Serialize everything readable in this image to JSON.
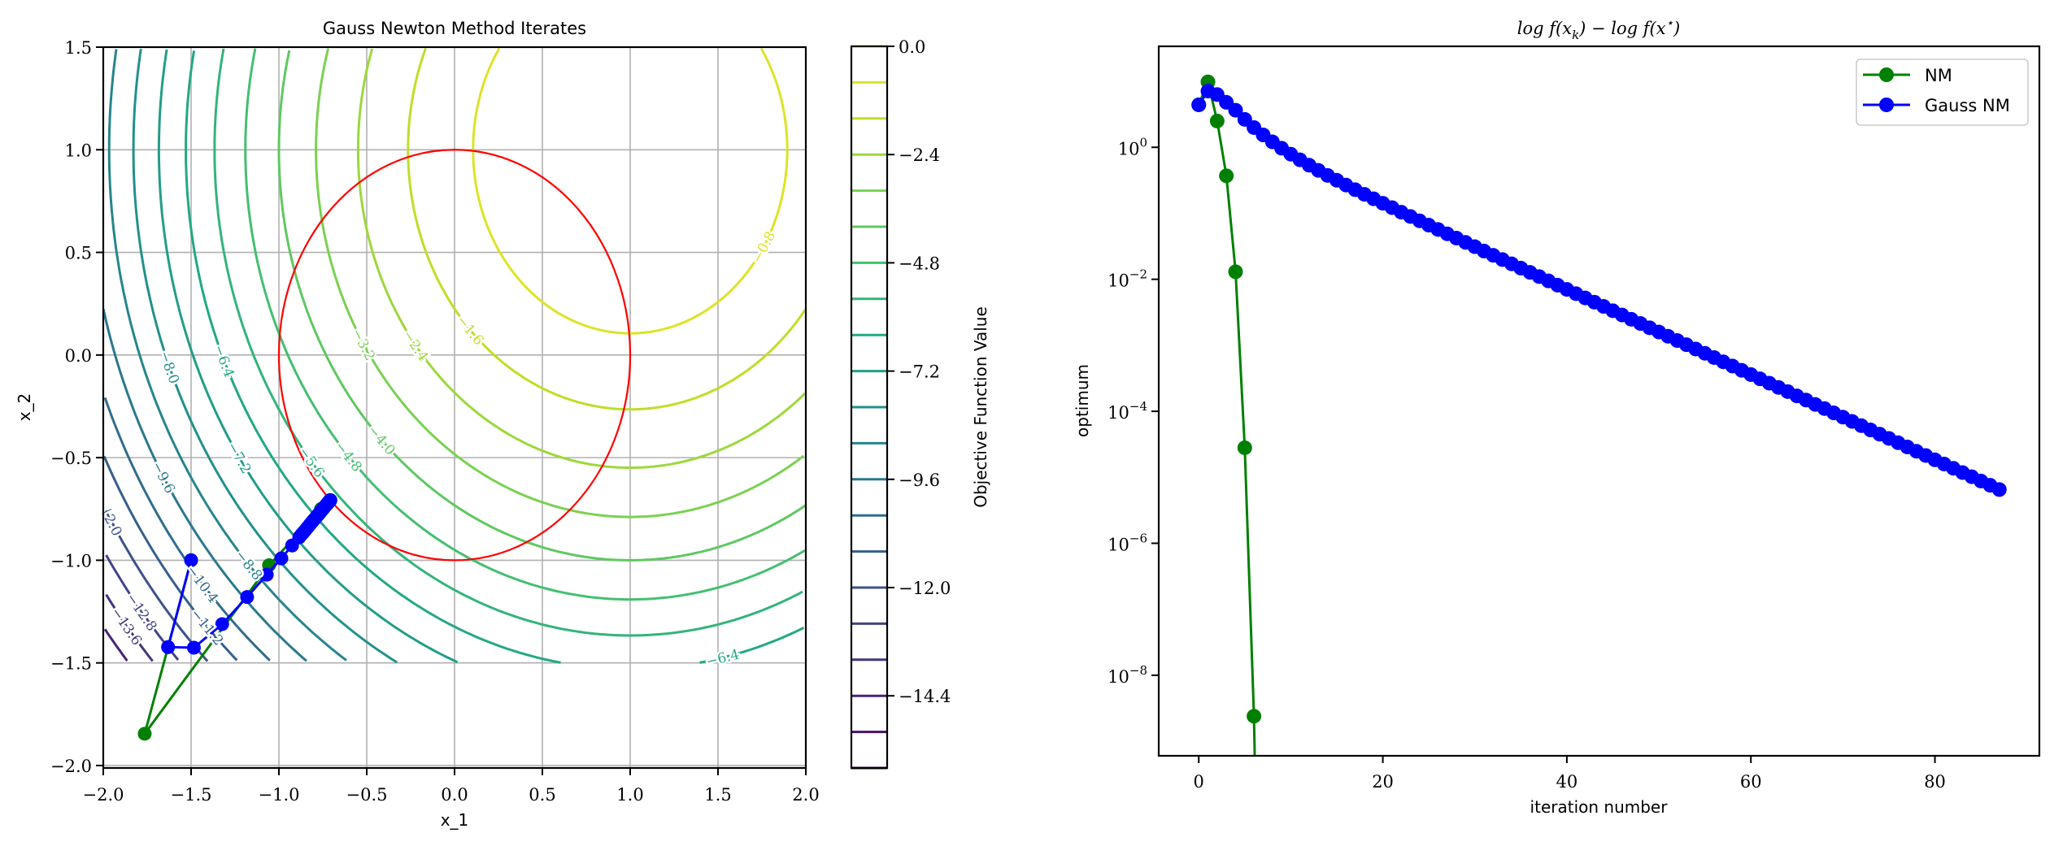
{
  "chart_data": [
    {
      "type": "contour",
      "title": "Gauss Newton Method Iterates",
      "xlabel": "x_1",
      "ylabel": "x_2",
      "xlim": [
        -2.0,
        2.0
      ],
      "ylim": [
        -2.012,
        1.5
      ],
      "grid": true,
      "xticks": [
        {
          "value": -2.0,
          "label": "−2.0"
        },
        {
          "value": -1.5,
          "label": "−1.5"
        },
        {
          "value": -1.0,
          "label": "−1.0"
        },
        {
          "value": -0.5,
          "label": "−0.5"
        },
        {
          "value": 0.0,
          "label": "0.0"
        },
        {
          "value": 0.5,
          "label": "0.5"
        },
        {
          "value": 1.0,
          "label": "1.0"
        },
        {
          "value": 1.5,
          "label": "1.5"
        },
        {
          "value": 2.0,
          "label": "2.0"
        }
      ],
      "yticks": [
        {
          "value": -2.0,
          "label": "−2.0"
        },
        {
          "value": -1.5,
          "label": "−1.5"
        },
        {
          "value": -1.0,
          "label": "−1.0"
        },
        {
          "value": -0.5,
          "label": "−0.5"
        },
        {
          "value": 0.0,
          "label": "0.0"
        },
        {
          "value": 0.5,
          "label": "0.5"
        },
        {
          "value": 1.0,
          "label": "1.0"
        },
        {
          "value": 1.5,
          "label": "1.5"
        }
      ],
      "contour_domain": {
        "x": [
          -2.0,
          2.0
        ],
        "y": [
          -1.5,
          1.5
        ]
      },
      "contour_center": [
        1.0,
        1.0
      ],
      "contour_levels": [
        -0.8,
        -1.6,
        -2.4,
        -3.2,
        -4.0,
        -4.8,
        -5.6,
        -6.4,
        -7.2,
        -8.0,
        -8.8,
        -9.6,
        -10.4,
        -11.2,
        -12.0,
        -12.8,
        -13.6,
        -14.4,
        -15.2
      ],
      "contour_labels": [
        {
          "level": -0.8,
          "text": "−0.8"
        },
        {
          "level": -1.6,
          "text": "−1.6"
        },
        {
          "level": -2.4,
          "text": "−2.4"
        },
        {
          "level": -3.2,
          "text": "−3.2"
        },
        {
          "level": -4.0,
          "text": "−4.0"
        },
        {
          "level": -4.8,
          "text": "−4.8"
        },
        {
          "level": -5.6,
          "text": "−5.6"
        },
        {
          "level": -6.4,
          "text": "−6.4"
        },
        {
          "level": -6.4,
          "text": "−6.4"
        },
        {
          "level": -7.2,
          "text": "−7.2"
        },
        {
          "level": -8.0,
          "text": "−8.0"
        },
        {
          "level": -8.8,
          "text": "−8.8"
        },
        {
          "level": -9.6,
          "text": "−9.6"
        },
        {
          "level": -10.4,
          "text": "−10.4"
        },
        {
          "level": -11.2,
          "text": "−11.2"
        },
        {
          "level": -12.0,
          "text": "−12.0"
        },
        {
          "level": -12.8,
          "text": "−12.8"
        },
        {
          "level": -13.6,
          "text": "−13.6"
        }
      ],
      "constraint_circle": {
        "center": [
          0.0,
          0.0
        ],
        "radius": 1.0,
        "color": "#ff0000"
      },
      "colorbar": {
        "label": "Objective Function Value",
        "range": [
          -16.0,
          0.0
        ],
        "line_levels": [
          -16.0,
          -15.2,
          -14.4,
          -13.6,
          -12.8,
          -12.0,
          -11.2,
          -10.4,
          -9.6,
          -8.8,
          -8.0,
          -7.2,
          -6.4,
          -5.6,
          -4.8,
          -4.0,
          -3.2,
          -2.4,
          -1.6,
          -0.8,
          0.0
        ],
        "ticks": [
          {
            "value": 0.0,
            "label": "0.0"
          },
          {
            "value": -2.4,
            "label": "−2.4"
          },
          {
            "value": -4.8,
            "label": "−4.8"
          },
          {
            "value": -7.2,
            "label": "−7.2"
          },
          {
            "value": -9.6,
            "label": "−9.6"
          },
          {
            "value": -12.0,
            "label": "−12.0"
          },
          {
            "value": -14.4,
            "label": "−14.4"
          }
        ]
      },
      "series": [
        {
          "name": "NM",
          "color": "#008000",
          "points": [
            [
              -1.5,
              -1.0
            ],
            [
              -1.631,
              -1.423
            ],
            [
              -1.764,
              -1.845
            ],
            [
              -1.056,
              -1.024
            ],
            [
              -0.76,
              -0.75
            ],
            [
              -0.709,
              -0.708
            ],
            [
              -0.707,
              -0.707
            ],
            [
              -0.707,
              -0.707
            ]
          ]
        },
        {
          "name": "Gauss NM",
          "color": "#0000ff",
          "points": [
            [
              -1.5,
              -1.0
            ],
            [
              -1.631,
              -1.423
            ],
            [
              -1.484,
              -1.426
            ],
            [
              -1.323,
              -1.311
            ],
            [
              -1.181,
              -1.179
            ],
            [
              -1.069,
              -1.07
            ],
            [
              -0.986,
              -0.991
            ],
            [
              -0.925,
              -0.928
            ],
            [
              -0.884,
              -0.888
            ],
            [
              -0.872,
              -0.875
            ],
            [
              -0.86,
              -0.864
            ],
            [
              -0.849,
              -0.853
            ],
            [
              -0.839,
              -0.842
            ],
            [
              -0.83,
              -0.833
            ],
            [
              -0.822,
              -0.824
            ],
            [
              -0.814,
              -0.816
            ],
            [
              -0.806,
              -0.808
            ],
            [
              -0.799,
              -0.801
            ],
            [
              -0.793,
              -0.795
            ],
            [
              -0.787,
              -0.788
            ],
            [
              -0.781,
              -0.783
            ],
            [
              -0.776,
              -0.777
            ],
            [
              -0.771,
              -0.773
            ],
            [
              -0.767,
              -0.768
            ],
            [
              -0.762,
              -0.764
            ],
            [
              -0.759,
              -0.76
            ],
            [
              -0.755,
              -0.756
            ],
            [
              -0.752,
              -0.753
            ],
            [
              -0.748,
              -0.749
            ],
            [
              -0.746,
              -0.746
            ],
            [
              -0.743,
              -0.743
            ],
            [
              -0.74,
              -0.74
            ],
            [
              -0.738,
              -0.738
            ],
            [
              -0.736,
              -0.736
            ],
            [
              -0.734,
              -0.734
            ],
            [
              -0.732,
              -0.732
            ],
            [
              -0.73,
              -0.73
            ],
            [
              -0.729,
              -0.729
            ],
            [
              -0.727,
              -0.727
            ],
            [
              -0.726,
              -0.726
            ],
            [
              -0.724,
              -0.724
            ],
            [
              -0.723,
              -0.723
            ],
            [
              -0.722,
              -0.722
            ],
            [
              -0.721,
              -0.721
            ],
            [
              -0.72,
              -0.72
            ],
            [
              -0.719,
              -0.719
            ],
            [
              -0.718,
              -0.718
            ],
            [
              -0.717,
              -0.717
            ],
            [
              -0.717,
              -0.717
            ],
            [
              -0.716,
              -0.716
            ],
            [
              -0.715,
              -0.715
            ],
            [
              -0.715,
              -0.715
            ],
            [
              -0.714,
              -0.714
            ],
            [
              -0.714,
              -0.714
            ],
            [
              -0.713,
              -0.713
            ],
            [
              -0.713,
              -0.713
            ],
            [
              -0.712,
              -0.712
            ],
            [
              -0.712,
              -0.712
            ],
            [
              -0.712,
              -0.712
            ],
            [
              -0.711,
              -0.711
            ],
            [
              -0.711,
              -0.711
            ],
            [
              -0.711,
              -0.711
            ],
            [
              -0.711,
              -0.711
            ],
            [
              -0.71,
              -0.71
            ],
            [
              -0.71,
              -0.71
            ],
            [
              -0.71,
              -0.71
            ],
            [
              -0.71,
              -0.71
            ],
            [
              -0.709,
              -0.709
            ],
            [
              -0.709,
              -0.709
            ],
            [
              -0.709,
              -0.709
            ],
            [
              -0.709,
              -0.709
            ],
            [
              -0.709,
              -0.709
            ],
            [
              -0.708,
              -0.708
            ],
            [
              -0.708,
              -0.708
            ],
            [
              -0.708,
              -0.708
            ],
            [
              -0.708,
              -0.708
            ],
            [
              -0.708,
              -0.708
            ],
            [
              -0.708,
              -0.708
            ],
            [
              -0.708,
              -0.708
            ],
            [
              -0.708,
              -0.708
            ],
            [
              -0.708,
              -0.708
            ],
            [
              -0.708,
              -0.708
            ],
            [
              -0.708,
              -0.708
            ],
            [
              -0.708,
              -0.708
            ],
            [
              -0.708,
              -0.708
            ],
            [
              -0.708,
              -0.708
            ],
            [
              -0.708,
              -0.708
            ],
            [
              -0.708,
              -0.708
            ]
          ]
        }
      ]
    },
    {
      "type": "line",
      "title": {
        "pre": "log f(x",
        "sub": "k",
        "mid": ") − log f(x",
        "sup": "⋆",
        "post": ")"
      },
      "xlabel": "iteration number",
      "ylabel": "optimum",
      "yscale": "log",
      "xlim": [
        -4.35,
        91.35
      ],
      "ylim_log10": [
        -9.22,
        1.53
      ],
      "grid": false,
      "xticks": [
        {
          "value": 0,
          "label": "0"
        },
        {
          "value": 20,
          "label": "20"
        },
        {
          "value": 40,
          "label": "40"
        },
        {
          "value": 60,
          "label": "60"
        },
        {
          "value": 80,
          "label": "80"
        }
      ],
      "yticks": [
        {
          "value": 1,
          "base": "10",
          "exp": "0"
        },
        {
          "value": 0.01,
          "base": "10",
          "exp": "−2"
        },
        {
          "value": 0.0001,
          "base": "10",
          "exp": "−4"
        },
        {
          "value": 1e-06,
          "base": "10",
          "exp": "−6"
        },
        {
          "value": 1e-08,
          "base": "10",
          "exp": "−8"
        }
      ],
      "legend": {
        "position": "top-right",
        "entries": [
          {
            "label": "NM",
            "color": "#008000"
          },
          {
            "label": "Gauss NM",
            "color": "#0000ff"
          }
        ]
      },
      "series": [
        {
          "name": "NM",
          "color": "#008000",
          "x": [
            0,
            1,
            2,
            3,
            4,
            5,
            6,
            7
          ],
          "y": [
            4.4,
            9.8,
            2.5,
            0.37,
            0.013,
            2.8e-05,
            2.4e-09,
            1e-16
          ]
        },
        {
          "name": "Gauss NM",
          "color": "#0000ff",
          "x_start": 0,
          "y": [
            4.4,
            7.1,
            6.3,
            4.8,
            3.65,
            2.65,
            1.99,
            1.54,
            1.21,
            0.969,
            0.787,
            0.646,
            0.535,
            0.447,
            0.375,
            0.317,
            0.268,
            0.228,
            0.194,
            0.166,
            0.142,
            0.122,
            0.104,
            0.0895,
            0.0769,
            0.0661,
            0.0569,
            0.0489,
            0.0421,
            0.0362,
            0.0312,
            0.02679,
            0.02309,
            0.0199,
            0.01715,
            0.01478,
            0.01274,
            0.01098,
            0.00946,
            0.00815,
            0.00703,
            0.00606,
            0.00522,
            0.0045,
            0.00388,
            0.00334,
            0.00288,
            0.00248,
            0.00214,
            0.00184,
            0.00159,
            0.00137,
            0.00118,
            0.00102,
            0.000878,
            0.000757,
            0.000652,
            0.000562,
            0.000485,
            0.000418,
            0.00036,
            0.00031,
            0.000267,
            0.00023,
            0.000199,
            0.000171,
            0.000148,
            0.000127,
            0.00011,
            9.46e-05,
            8.15e-05,
            7.03e-05,
            6.06e-05,
            5.22e-05,
            4.5e-05,
            3.88e-05,
            3.34e-05,
            2.88e-05,
            2.48e-05,
            2.14e-05,
            1.84e-05,
            1.59e-05,
            1.37e-05,
            1.18e-05,
            1.02e-05,
            8.78e-06,
            7.57e-06,
            6.52e-06
          ]
        }
      ]
    }
  ]
}
